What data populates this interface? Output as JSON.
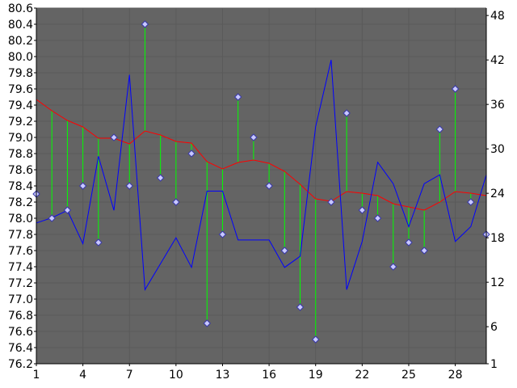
{
  "chart_data": {
    "type": "line",
    "title": "",
    "xlabel": "",
    "ylabel": "",
    "x": [
      1,
      2,
      3,
      4,
      5,
      6,
      7,
      8,
      9,
      10,
      11,
      12,
      13,
      14,
      15,
      16,
      17,
      18,
      19,
      20,
      21,
      22,
      23,
      24,
      25,
      26,
      27,
      28,
      29,
      30
    ],
    "xlim": [
      1,
      30
    ],
    "x_ticks": [
      1,
      4,
      7,
      10,
      13,
      16,
      19,
      22,
      25,
      28
    ],
    "ylim_left": [
      76.2,
      80.6
    ],
    "y_ticks_left": [
      "76.2",
      "76.4",
      "76.6",
      "76.8",
      "77.0",
      "77.2",
      "77.4",
      "77.6",
      "77.8",
      "78.0",
      "78.2",
      "78.4",
      "78.6",
      "78.8",
      "79.0",
      "79.2",
      "79.4",
      "79.6",
      "79.8",
      "80.0",
      "80.2",
      "80.4",
      "80.6"
    ],
    "ylim_right": [
      1,
      49
    ],
    "y_ticks_right": [
      1,
      6,
      12,
      18,
      24,
      30,
      36,
      42,
      48
    ],
    "grid": true,
    "background": "#646464",
    "series": [
      {
        "axis": "left",
        "style": "markers",
        "color": "#c8c8ff",
        "values": [
          78.3,
          78.0,
          78.1,
          78.4,
          77.7,
          79.0,
          78.4,
          80.4,
          78.5,
          78.2,
          78.8,
          76.7,
          77.8,
          79.5,
          79.0,
          78.4,
          77.6,
          76.9,
          76.5,
          78.2,
          79.3,
          78.1,
          78.0,
          77.4,
          77.7,
          77.6,
          79.1,
          79.6,
          78.2,
          77.8
        ]
      },
      {
        "axis": "left",
        "style": "line",
        "color": "#ff0000",
        "values": [
          79.47,
          79.33,
          79.21,
          79.13,
          78.99,
          78.99,
          78.92,
          79.08,
          79.03,
          78.95,
          78.93,
          78.7,
          78.61,
          78.69,
          78.72,
          78.68,
          78.58,
          78.42,
          78.24,
          78.21,
          78.33,
          78.31,
          78.28,
          78.18,
          78.14,
          78.1,
          78.2,
          78.33,
          78.31,
          78.28
        ]
      },
      {
        "axis": "right",
        "style": "line",
        "color": "#0000ff",
        "values": [
          20,
          20.7,
          21.7,
          17.2,
          29,
          21.7,
          40,
          11,
          14.5,
          18,
          14,
          24.3,
          24.3,
          17.7,
          17.7,
          17.7,
          14,
          15.5,
          33,
          42,
          11,
          17.5,
          28.2,
          25.3,
          19.5,
          25.3,
          26.5,
          17.5,
          19.5,
          26.5
        ]
      },
      {
        "style": "drop-lines",
        "color": "#00ff00",
        "from_series": 0,
        "to_series": 1
      }
    ]
  }
}
